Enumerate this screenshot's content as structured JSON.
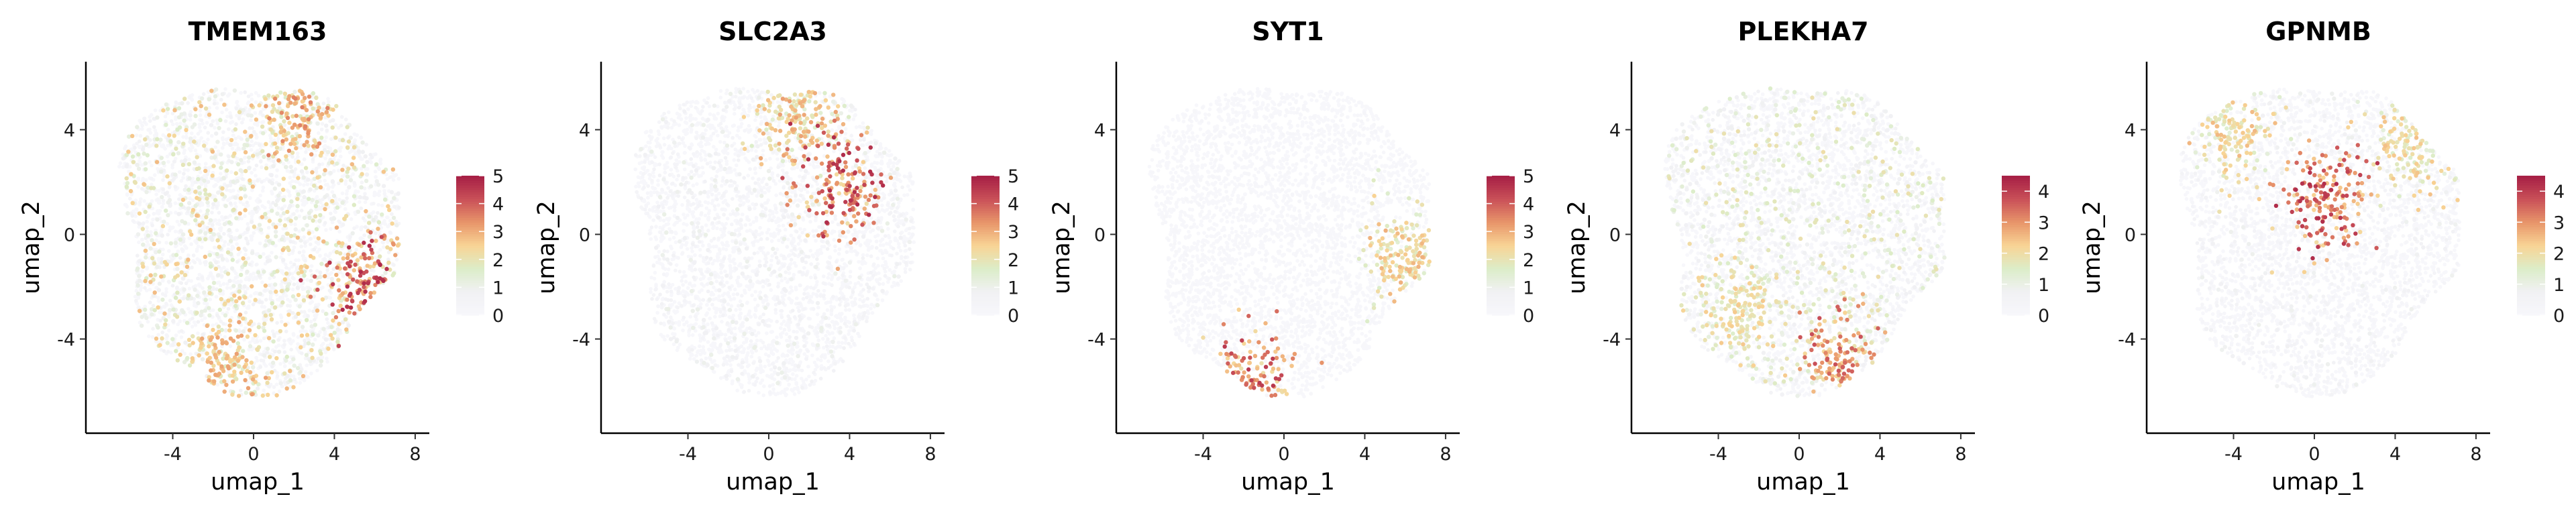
{
  "chart_data": [
    {
      "type": "scatter",
      "title": "TMEM163",
      "xlabel": "umap_1",
      "ylabel": "umap_2",
      "xlim": [
        -8.3,
        8.7
      ],
      "ylim": [
        -7.6,
        6.6
      ],
      "x_ticks": [
        "-4",
        "0",
        "4",
        "8"
      ],
      "y_ticks": [
        "4",
        "0",
        "-4"
      ],
      "colorbar": {
        "min": 0,
        "max": 5,
        "ticks": [
          "5",
          "4",
          "3",
          "2",
          "1",
          "0"
        ]
      },
      "grid": false,
      "expression_hotspots": [
        {
          "x": 5.6,
          "y": -2.0,
          "value": 4.8
        },
        {
          "x": 2.0,
          "y": 4.8,
          "value": 3.6
        },
        {
          "x": -1.5,
          "y": -5.0,
          "value": 3.2
        }
      ],
      "background_level": 1.3
    },
    {
      "type": "scatter",
      "title": "SLC2A3",
      "xlabel": "umap_1",
      "ylabel": "umap_2",
      "xlim": [
        -8.3,
        8.7
      ],
      "ylim": [
        -7.6,
        6.6
      ],
      "x_ticks": [
        "-4",
        "0",
        "4",
        "8"
      ],
      "y_ticks": [
        "4",
        "0",
        "-4"
      ],
      "colorbar": {
        "min": 0,
        "max": 5,
        "ticks": [
          "5",
          "4",
          "3",
          "2",
          "1",
          "0"
        ]
      },
      "grid": false,
      "expression_hotspots": [
        {
          "x": 3.6,
          "y": 2.0,
          "value": 4.8
        },
        {
          "x": 1.5,
          "y": 4.5,
          "value": 3.2
        }
      ],
      "background_level": 0.5
    },
    {
      "type": "scatter",
      "title": "SYT1",
      "xlabel": "umap_1",
      "ylabel": "umap_2",
      "xlim": [
        -8.3,
        8.7
      ],
      "ylim": [
        -7.6,
        6.6
      ],
      "x_ticks": [
        "-4",
        "0",
        "4",
        "8"
      ],
      "y_ticks": [
        "4",
        "0",
        "-4"
      ],
      "colorbar": {
        "min": 0,
        "max": 5,
        "ticks": [
          "5",
          "4",
          "3",
          "2",
          "1",
          "0"
        ]
      },
      "grid": false,
      "expression_hotspots": [
        {
          "x": -1.5,
          "y": -5.6,
          "value": 4.6
        },
        {
          "x": 6.0,
          "y": -0.8,
          "value": 3.0
        }
      ],
      "background_level": 0.1
    },
    {
      "type": "scatter",
      "title": "PLEKHA7",
      "xlabel": "umap_1",
      "ylabel": "umap_2",
      "xlim": [
        -8.3,
        8.7
      ],
      "ylim": [
        -7.6,
        6.6
      ],
      "x_ticks": [
        "-4",
        "0",
        "4",
        "8"
      ],
      "y_ticks": [
        "4",
        "0",
        "-4"
      ],
      "colorbar": {
        "min": 0,
        "max": 4.5,
        "ticks": [
          "4",
          "3",
          "2",
          "1",
          "0"
        ]
      },
      "grid": false,
      "expression_hotspots": [
        {
          "x": 2.2,
          "y": -5.0,
          "value": 3.8
        },
        {
          "x": -3.0,
          "y": -3.0,
          "value": 2.4
        }
      ],
      "background_level": 0.9
    },
    {
      "type": "scatter",
      "title": "GPNMB",
      "xlabel": "umap_1",
      "ylabel": "umap_2",
      "xlim": [
        -8.3,
        8.7
      ],
      "ylim": [
        -7.6,
        6.6
      ],
      "x_ticks": [
        "-4",
        "0",
        "4",
        "8"
      ],
      "y_ticks": [
        "4",
        "0",
        "-4"
      ],
      "colorbar": {
        "min": 0,
        "max": 4.5,
        "ticks": [
          "4",
          "3",
          "2",
          "1",
          "0"
        ]
      },
      "grid": false,
      "expression_hotspots": [
        {
          "x": 0.6,
          "y": 1.4,
          "value": 4.3
        },
        {
          "x": -4.0,
          "y": 4.0,
          "value": 2.6
        },
        {
          "x": 5.0,
          "y": 3.5,
          "value": 2.5
        }
      ],
      "background_level": 0.4
    }
  ],
  "colormap": [
    "#f7f7fb",
    "#f1f1f4",
    "#dcedc9",
    "#f8d495",
    "#e8956a",
    "#c95058",
    "#a61e45"
  ]
}
